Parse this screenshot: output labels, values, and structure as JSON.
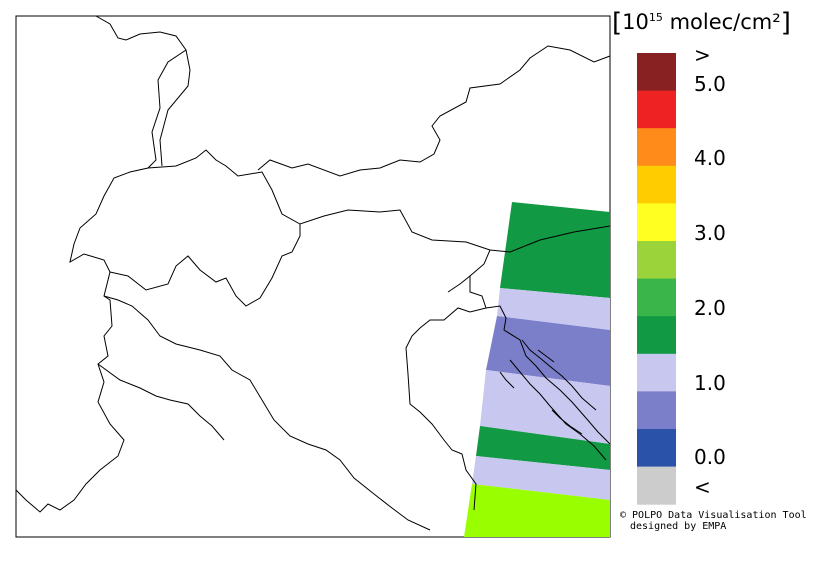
{
  "unit_label": "10",
  "unit_exponent": "15",
  "unit_suffix": "molec/cm²",
  "legend": {
    "colors": [
      "#cccccc",
      "#2a52a8",
      "#7b7fc9",
      "#c7c7f0",
      "#119944",
      "#39b54a",
      "#9bd33a",
      "#ffff22",
      "#ffcc00",
      "#ff8c1a",
      "#ee2222",
      "#882222"
    ],
    "labels": [
      "<",
      "0.0",
      "1.0",
      "2.0",
      "3.0",
      "4.0",
      "5.0",
      ">"
    ]
  },
  "swath": {
    "bands": [
      {
        "value": 2.1,
        "color": "#119944"
      },
      {
        "value": 1.2,
        "color": "#c7c7f0"
      },
      {
        "value": 0.8,
        "color": "#7b7fc9"
      },
      {
        "value": 1.2,
        "color": "#c7c7f0"
      },
      {
        "value": 2.1,
        "color": "#119944"
      },
      {
        "value": 1.2,
        "color": "#c7c7f0"
      },
      {
        "value": 2.8,
        "color": "#99ff00"
      }
    ]
  },
  "credit_line1": "© POLPO Data Visualisation Tool",
  "credit_line2": "designed by EMPA"
}
